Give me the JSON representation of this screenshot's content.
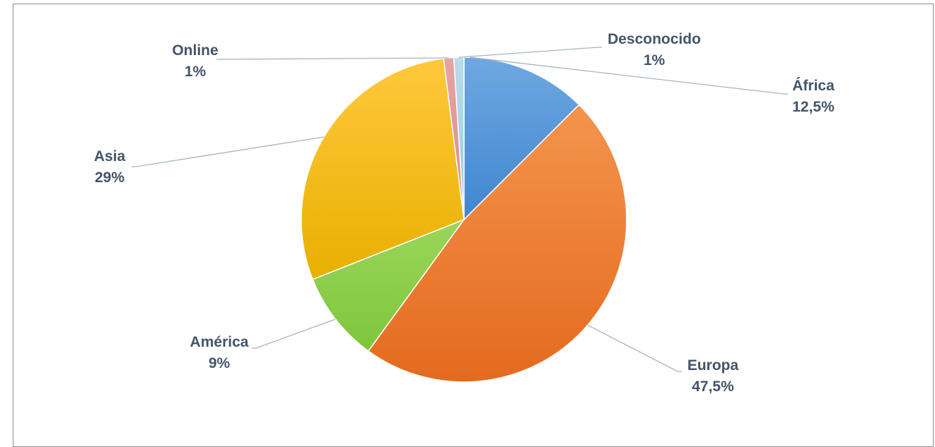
{
  "chart_data": {
    "type": "pie",
    "title": "",
    "slices": [
      {
        "name": "África",
        "value": 12.5,
        "label_value": "12,5%",
        "color_light": "#6fa8e0",
        "color_dark": "#3f86d0"
      },
      {
        "name": "Europa",
        "value": 47.5,
        "label_value": "47,5%",
        "color_light": "#f4944e",
        "color_dark": "#e46a1e"
      },
      {
        "name": "América",
        "value": 9,
        "label_value": "9%",
        "color_light": "#9ad65a",
        "color_dark": "#7fc63c"
      },
      {
        "name": "Asia",
        "value": 29,
        "label_value": "29%",
        "color_light": "#ffc83c",
        "color_dark": "#e8b000"
      },
      {
        "name": "Online",
        "value": 1,
        "label_value": "1%",
        "color_light": "#e8a3a3",
        "color_dark": "#d98c8c"
      },
      {
        "name": "Desconocido",
        "value": 1,
        "label_value": "1%",
        "color_light": "#b9dcea",
        "color_dark": "#9ccbe0"
      }
    ],
    "start_angle_deg": 0,
    "direction": "clockwise",
    "legend": "none",
    "label_color": "#44546a",
    "leader_line_color": "#a5b4c4"
  }
}
